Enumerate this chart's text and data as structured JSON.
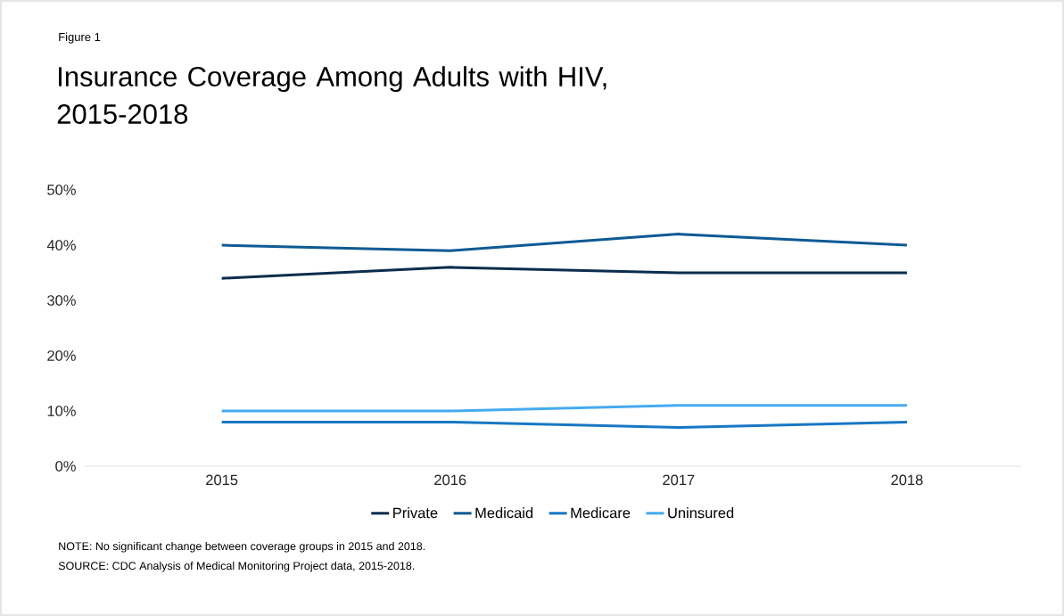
{
  "chart_data": {
    "type": "line",
    "title": "Insurance Coverage Among Adults with HIV, 2015-2018",
    "categories": [
      "2015",
      "2016",
      "2017",
      "2018"
    ],
    "series": [
      {
        "name": "Private",
        "color": "#0b2d4d",
        "values": [
          34,
          36,
          35,
          35
        ]
      },
      {
        "name": "Medicaid",
        "color": "#0d5a94",
        "values": [
          40,
          39,
          42,
          40
        ]
      },
      {
        "name": "Medicare",
        "color": "#1777c4",
        "values": [
          8,
          8,
          7,
          8
        ]
      },
      {
        "name": "Uninsured",
        "color": "#45aaf0",
        "values": [
          10,
          10,
          11,
          11
        ]
      }
    ],
    "ylim": [
      0,
      50
    ],
    "yticks": [
      {
        "value": 0,
        "label": "0%"
      },
      {
        "value": 10,
        "label": "10%"
      },
      {
        "value": 20,
        "label": "20%"
      },
      {
        "value": 30,
        "label": "30%"
      },
      {
        "value": 40,
        "label": "40%"
      },
      {
        "value": 50,
        "label": "50%"
      }
    ],
    "grid": false,
    "legend": "bottom",
    "marker": "none",
    "line_style": "solid",
    "annotations": [
      "Figure 1",
      "NOTE: No significant change between coverage groups in 2015 and 2018.",
      "SOURCE: CDC Analysis of Medical Monitoring Project data, 2015-2018."
    ]
  }
}
